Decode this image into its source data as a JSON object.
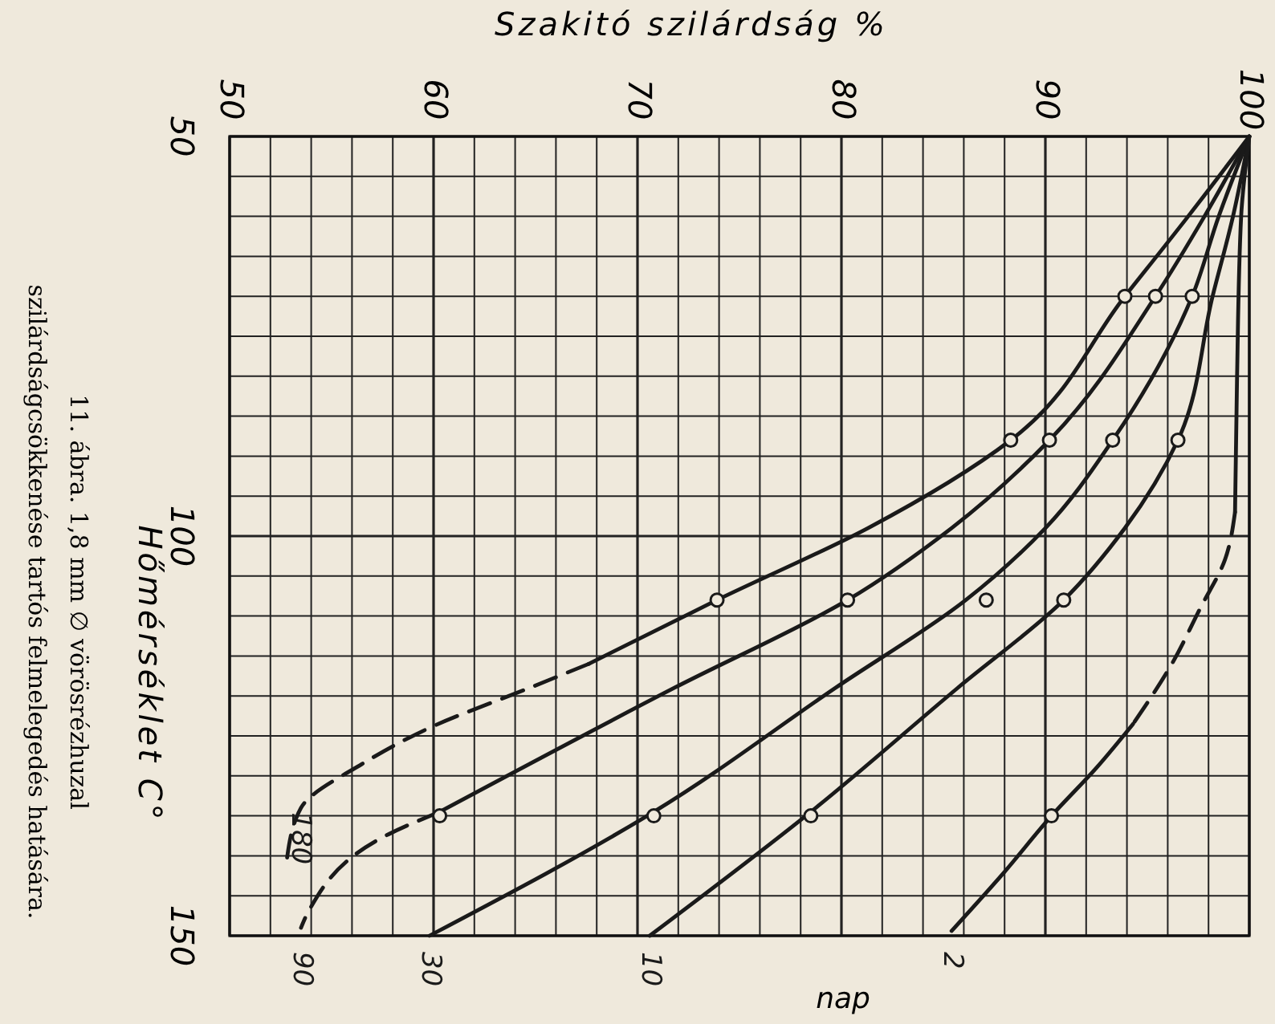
{
  "chart_data": {
    "type": "line",
    "xlabel": "Szakitó szilárdság %",
    "ylabel": "Hőmérséklet C°",
    "annotations": [
      "nap",
      "11. ábra. 1,8 mm ∅ vörösrézhuzal",
      "szilárdságcsökkenése tartós felmelegedés hatására."
    ],
    "ylim": [
      150,
      50
    ],
    "yticks": [
      50,
      {
        "value": 55,
        "label": null
      },
      {
        "value": 60,
        "label": null
      },
      {
        "value": 65,
        "label": null
      },
      {
        "value": 70,
        "label": null
      },
      {
        "value": 75,
        "label": null
      },
      {
        "value": 80,
        "label": null
      },
      {
        "value": 85,
        "label": null
      },
      {
        "value": 90,
        "label": null
      },
      {
        "value": 95,
        "label": null
      },
      100,
      {
        "value": 105,
        "label": null
      },
      {
        "value": 110,
        "label": null
      },
      {
        "value": 115,
        "label": null
      },
      {
        "value": 120,
        "label": null
      },
      {
        "value": 125,
        "label": null
      },
      {
        "value": 130,
        "label": null
      },
      {
        "value": 135,
        "label": null
      },
      {
        "value": 140,
        "label": null
      },
      {
        "value": 145,
        "label": null
      },
      150
    ],
    "xlim": [
      50,
      100
    ],
    "xticks": [
      50,
      {
        "value": 52,
        "label": null
      },
      {
        "value": 54,
        "label": null
      },
      {
        "value": 56,
        "label": null
      },
      {
        "value": 58,
        "label": null
      },
      60,
      {
        "value": 62,
        "label": null
      },
      {
        "value": 64,
        "label": null
      },
      {
        "value": 66,
        "label": null
      },
      {
        "value": 68,
        "label": null
      },
      70,
      {
        "value": 72,
        "label": null
      },
      {
        "value": 74,
        "label": null
      },
      {
        "value": 76,
        "label": null
      },
      {
        "value": 78,
        "label": null
      },
      80,
      {
        "value": 82,
        "label": null
      },
      {
        "value": 84,
        "label": null
      },
      {
        "value": 86,
        "label": null
      },
      {
        "value": 88,
        "label": null
      },
      90,
      {
        "value": 92,
        "label": null
      },
      {
        "value": 94,
        "label": null
      },
      {
        "value": 96,
        "label": null
      },
      {
        "value": 98,
        "label": null
      },
      100
    ],
    "grid": true,
    "legend": false,
    "series": [
      {
        "line_style": "solid",
        "color": "#1a1a1a",
        "x": [
          100,
          97,
          93.9,
          88.3,
          81.3,
          73.9,
          67.6
        ],
        "values": [
          50,
          60,
          70,
          88,
          99,
          108,
          116
        ]
      },
      {
        "name": "180",
        "line_style": "dashed",
        "color": "#1a1a1a",
        "x": [
          67.6,
          64.7,
          59.8,
          56.5,
          53.5,
          52.8
        ],
        "values": [
          116,
          119,
          124,
          128.5,
          134,
          140.6
        ]
      },
      {
        "line_style": "solid",
        "color": "#1a1a1a",
        "x": [
          100,
          97.8,
          95.4,
          90.2,
          85.4,
          80.3,
          71.8,
          60.3
        ],
        "values": [
          50,
          60,
          70,
          88,
          99,
          108,
          119,
          134.5
        ]
      },
      {
        "name": "90",
        "line_style": "dashed",
        "color": "#1a1a1a",
        "x": [
          60.3,
          57.8,
          53.9,
          53.5
        ],
        "values": [
          134.5,
          137.3,
          146.8,
          149
        ]
      },
      {
        "name": "30",
        "line_style": "solid",
        "color": "#1a1a1a",
        "x": [
          100,
          98.5,
          97.2,
          93.3,
          90,
          86.1,
          79.7,
          70.8,
          59.8
        ],
        "values": [
          50,
          60,
          70,
          88,
          99,
          108,
          119,
          134.5,
          150
        ]
      },
      {
        "name": "10",
        "line_style": "solid",
        "color": "#1a1a1a",
        "x": [
          100,
          99.2,
          98.2,
          96.5,
          93.9,
          90.9,
          85.7,
          78.5,
          70.6
        ],
        "values": [
          50,
          60,
          70,
          88,
          99,
          108,
          119,
          134.5,
          150
        ]
      },
      {
        "line_style": "solid",
        "color": "#1a1a1a",
        "x": [
          100,
          99.6,
          99.4,
          99.3
        ],
        "values": [
          50,
          60,
          80,
          97
        ]
      },
      {
        "line_style": "dashed",
        "color": "#1a1a1a",
        "x": [
          99.3,
          98.8,
          97.6,
          96.2,
          94.3
        ],
        "values": [
          97,
          103,
          109,
          116,
          123.5
        ]
      },
      {
        "name": "2",
        "line_style": "solid",
        "color": "#1a1a1a",
        "x": [
          94.3,
          92.5,
          90.3,
          88,
          85.4
        ],
        "values": [
          123.5,
          129,
          135,
          142,
          149.4
        ]
      },
      {
        "type": "scatter",
        "marker": "circle",
        "color": "#1a1a1a",
        "x": [
          93.9,
          95.4,
          97.2,
          88.3,
          90.2,
          93.3,
          96.5,
          73.9,
          80.3,
          87.1,
          90.9,
          60.3,
          70.8,
          78.5,
          90.3
        ],
        "values": [
          70,
          70,
          70,
          88,
          88,
          88,
          88,
          108,
          108,
          108,
          108,
          135,
          135,
          135,
          135
        ]
      }
    ]
  }
}
